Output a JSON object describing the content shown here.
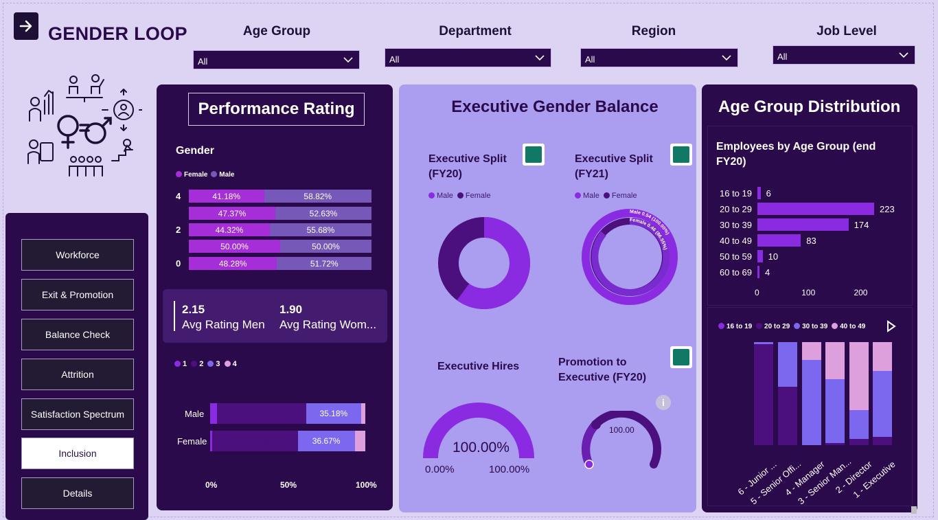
{
  "app_title": "GENDER LOOP",
  "filters": [
    {
      "label": "Age Group",
      "value": "All"
    },
    {
      "label": "Department",
      "value": "All"
    },
    {
      "label": "Region",
      "value": "All"
    },
    {
      "label": "Job Level",
      "value": "All"
    }
  ],
  "nav": {
    "items": [
      "Workforce",
      "Exit & Promotion",
      "Balance Check",
      "Attrition",
      "Satisfaction Spectrum",
      "Inclusion",
      "Details"
    ],
    "active": "Inclusion"
  },
  "performance": {
    "title": "Performance Rating",
    "gender_heading": "Gender",
    "legend": [
      "Female",
      "Male"
    ],
    "y_ticks": [
      "4",
      "2",
      "0"
    ],
    "rows": [
      {
        "female": "41.18%",
        "male": "58.82%",
        "female_pct": 41.18
      },
      {
        "female": "47.37%",
        "male": "52.63%",
        "female_pct": 47.37
      },
      {
        "female": "44.32%",
        "male": "55.68%",
        "female_pct": 44.32
      },
      {
        "female": "50.00%",
        "male": "50.00%",
        "female_pct": 50.0
      },
      {
        "female": "48.28%",
        "male": "51.72%",
        "female_pct": 48.28
      }
    ],
    "kpi": {
      "men_value": "2.15",
      "men_label": "Avg Rating Men",
      "women_value": "1.90",
      "women_label": "Avg Rating Wom..."
    },
    "rating_legend": [
      "1",
      "2",
      "3",
      "4"
    ],
    "rating_rows": [
      {
        "label": "Male",
        "segments": [
          4.5,
          57.5,
          35.18,
          2.82
        ],
        "label3": "35.18%",
        "label2": "57.50%"
      },
      {
        "label": "Female",
        "segments": [
          1.5,
          55.0,
          36.67,
          6.83
        ],
        "label3": "36.67%",
        "label2": "55.00%"
      }
    ],
    "x_ticks": [
      "0%",
      "50%",
      "100%"
    ]
  },
  "executive": {
    "title": "Executive Gender Balance",
    "split_fy20": {
      "title": "Executive Split (FY20)",
      "legend": [
        "Male",
        "Female"
      ],
      "male": 0.6,
      "female": 0.4
    },
    "split_fy21": {
      "title": "Executive Split (FY21)",
      "legend": [
        "Male",
        "Female"
      ],
      "male_label": "Male 0.54 (100.00%)",
      "female_label": "Female 0.46 (86.55%)"
    },
    "hires": {
      "title": "Executive Hires",
      "value": "100.00%",
      "min": "0.00%",
      "max": "100.00%"
    },
    "promotion": {
      "title": "Promotion to Executive (FY20)",
      "value": "100.00"
    }
  },
  "age_dist": {
    "title": "Age Group Distribution",
    "chart_title": "Employees by Age Group (end FY20)",
    "colors": {
      "accent": "#8a2be2",
      "dark": "#4b0f7e",
      "mid": "#7b68ee",
      "light": "#dda0dd"
    }
  },
  "chart_data": [
    {
      "type": "bar",
      "title": "Employees by Age Group (end FY20)",
      "categories": [
        "16 to 19",
        "20 to 29",
        "30 to 39",
        "40 to 49",
        "50 to 59",
        "60 to 69"
      ],
      "values": [
        6,
        223,
        174,
        83,
        10,
        4
      ],
      "x_ticks": [
        "0",
        "100",
        "200"
      ],
      "xlim": [
        0,
        270
      ]
    },
    {
      "type": "bar",
      "title": "",
      "legend": [
        "16 to 19",
        "20 to 29",
        "30 to 39",
        "40 to 49"
      ],
      "categories": [
        "6 - Junior ...",
        "5 - Senior Offi...",
        "4 - Manager",
        "3 - Senior Man...",
        "2 - Director",
        "1 - Executive"
      ],
      "series": [
        {
          "name": "16 to 19",
          "values": [
            0,
            0,
            0,
            0,
            0,
            0
          ]
        },
        {
          "name": "20 to 29",
          "values": [
            98,
            57,
            0,
            2,
            6,
            8
          ]
        },
        {
          "name": "30 to 39",
          "values": [
            2,
            43,
            83,
            62,
            28,
            64
          ]
        },
        {
          "name": "40 to 49",
          "values": [
            0,
            0,
            17,
            36,
            66,
            28
          ]
        }
      ]
    }
  ]
}
